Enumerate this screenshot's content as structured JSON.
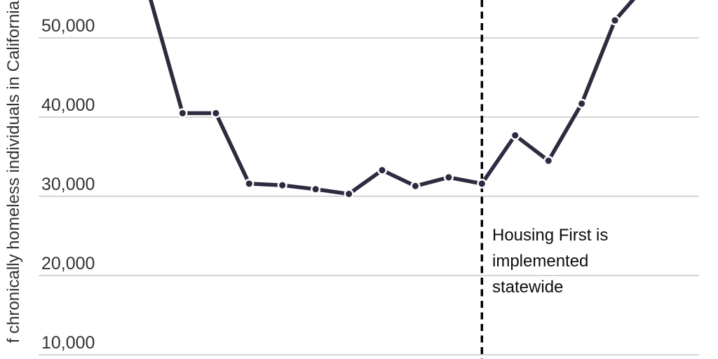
{
  "colors": {
    "line": "#2e2a40",
    "marker_ring": "#ffffff",
    "grid": "#d5d5d5",
    "tick_text": "#333333",
    "annotation_text": "#0d0d0d",
    "dashed_line": "#000000",
    "background": "#ffffff"
  },
  "axis": {
    "y_label_visible": "f chronically homeless individuals in California",
    "y_ticks": [
      {
        "value": 50000,
        "label": "50,000"
      },
      {
        "value": 40000,
        "label": "40,000"
      },
      {
        "value": 30000,
        "label": "30,000"
      },
      {
        "value": 20000,
        "label": "20,000"
      },
      {
        "value": 10000,
        "label": "10,000"
      }
    ]
  },
  "annotation": {
    "text": "Housing First is\nimplemented\nstatewide"
  },
  "chart_data": {
    "type": "line",
    "title": "",
    "ylabel_visible": "f chronically homeless individuals in California",
    "xlabel": "",
    "x_tick_labels_visible": false,
    "x": [
      0,
      1,
      2,
      3,
      4,
      5,
      6,
      7,
      8,
      9,
      10,
      11,
      12,
      13,
      14,
      15
    ],
    "values": [
      55400,
      40500,
      40500,
      31600,
      31400,
      30900,
      30300,
      33300,
      31300,
      32400,
      31600,
      37700,
      34500,
      41700,
      52200,
      57000
    ],
    "ylim_visible": [
      9500,
      54900
    ],
    "grid": "horizontal",
    "legend": "none",
    "annotation": {
      "label": "Housing First is implemented statewide",
      "at_index": 10
    }
  }
}
